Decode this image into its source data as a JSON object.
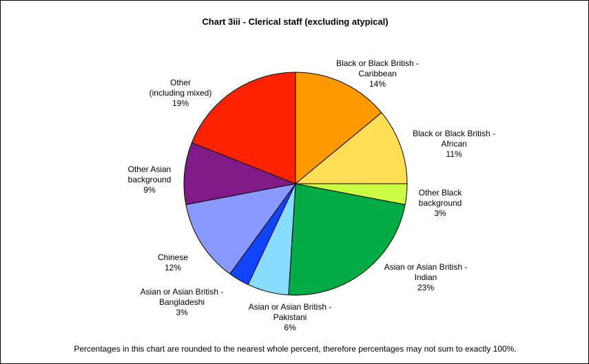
{
  "chart_data": {
    "type": "pie",
    "title": "Chart 3iii - Clerical staff (excluding atypical)",
    "footnote": "Percentages in this chart are rounded to the nearest whole percent, therefore percentages may not sum to exactly 100%.",
    "slices": [
      {
        "label_lines": [
          "Black or Black British -",
          "Caribbean"
        ],
        "value": 14,
        "pct_label": "14%",
        "color": "#FF9900"
      },
      {
        "label_lines": [
          "Black or Black British -",
          "African"
        ],
        "value": 11,
        "pct_label": "11%",
        "color": "#FFDD55"
      },
      {
        "label_lines": [
          "Other Black",
          "background"
        ],
        "value": 3,
        "pct_label": "3%",
        "color": "#CCFF44"
      },
      {
        "label_lines": [
          "Asian or Asian British -",
          "Indian"
        ],
        "value": 23,
        "pct_label": "23%",
        "color": "#00AA44"
      },
      {
        "label_lines": [
          "Asian or Asian British -",
          "Pakistani"
        ],
        "value": 6,
        "pct_label": "6%",
        "color": "#88DDFF"
      },
      {
        "label_lines": [
          "Asian or Asian British -",
          "Bangladeshi"
        ],
        "value": 3,
        "pct_label": "3%",
        "color": "#1144FF"
      },
      {
        "label_lines": [
          "Chinese"
        ],
        "value": 12,
        "pct_label": "12%",
        "color": "#8899FF"
      },
      {
        "label_lines": [
          "Other Asian",
          "background"
        ],
        "value": 9,
        "pct_label": "9%",
        "color": "#7F1A88"
      },
      {
        "label_lines": [
          "Other",
          "(including mixed)"
        ],
        "value": 19,
        "pct_label": "19%",
        "color": "#FF2200"
      }
    ]
  }
}
